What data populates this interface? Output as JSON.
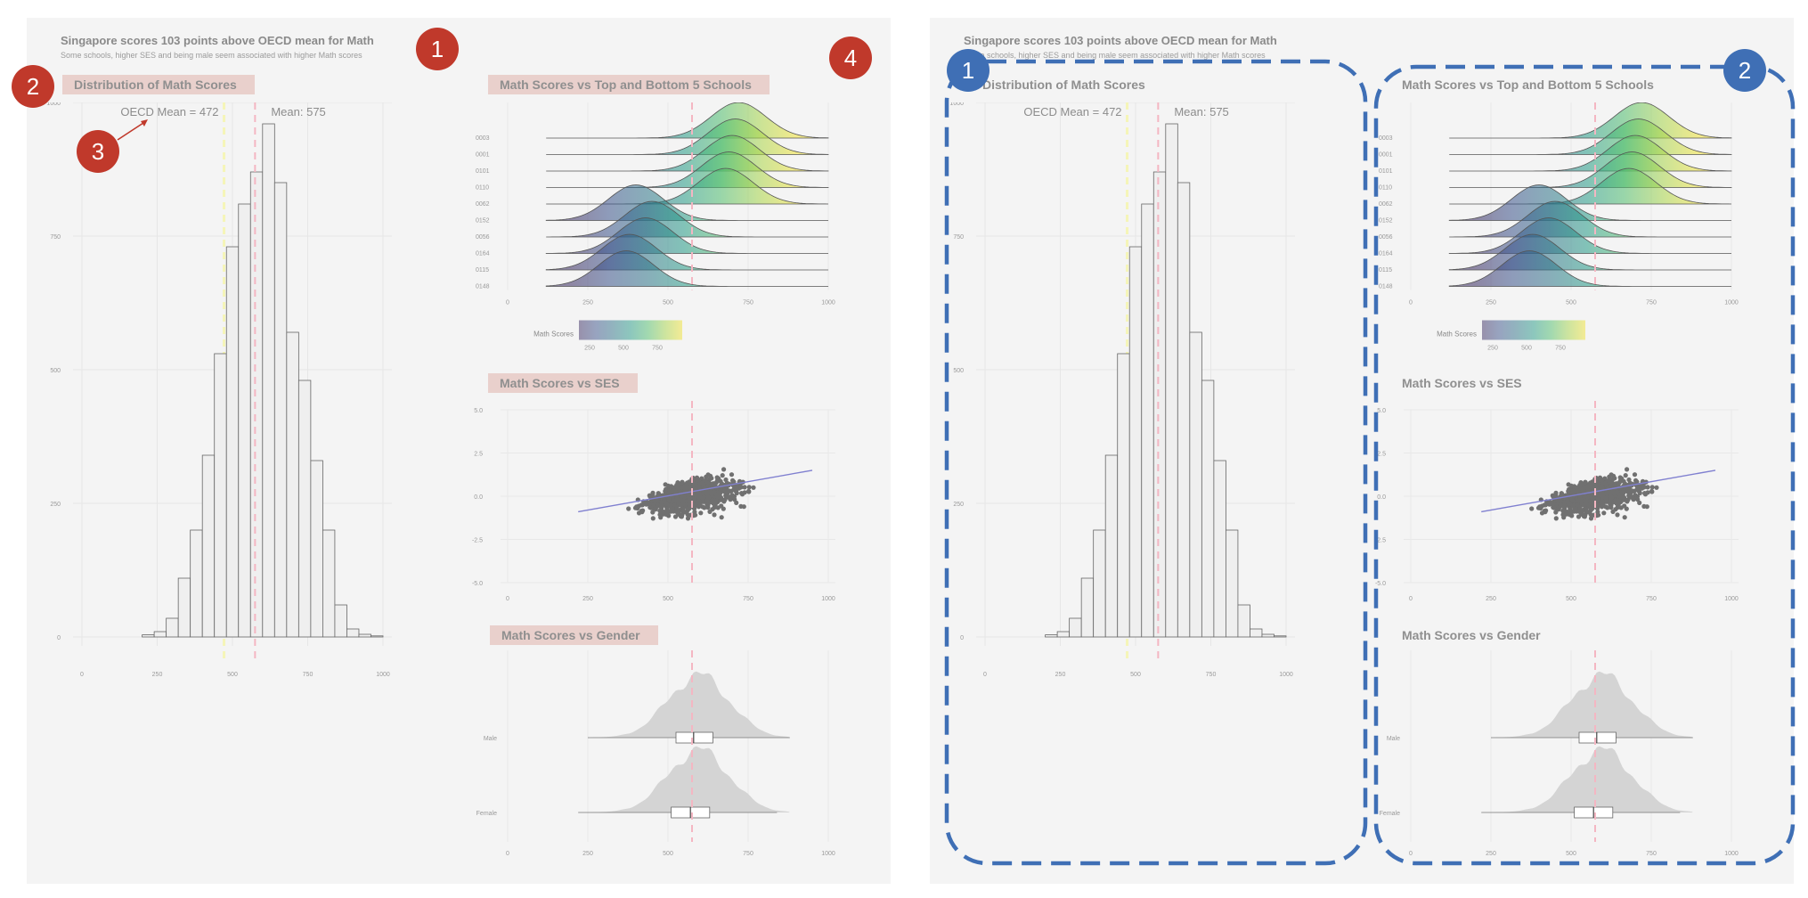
{
  "colors": {
    "panel_bg": "#f4f4f4",
    "highlight_bg": "#e5c6c1",
    "annotation_red": "#c0392b",
    "annotation_blue": "#3f6fb5",
    "mean_line": "#f4b6c2",
    "oecd_line": "#f5f5b8",
    "bar_fill": "#efefef",
    "bar_stroke": "#666666"
  },
  "left_dashboard": {
    "title": "Singapore scores 103 points above OECD mean for Math",
    "subtitle": "Some schools, higher SES and being male seem associated with higher Math scores",
    "sections": {
      "distribution": "Distribution of Math Scores",
      "schools": "Math Scores vs Top and Bottom 5 Schools",
      "ses": "Math Scores vs SES",
      "gender": "Math Scores vs Gender"
    },
    "markers": [
      "1",
      "2",
      "3",
      "4"
    ]
  },
  "right_dashboard": {
    "title": "Singapore scores 103 points above OECD mean for Math",
    "subtitle": "Some schools, higher SES and being male seem associated with higher Math scores",
    "sections": {
      "distribution": "Distribution of Math Scores",
      "schools": "Math Scores vs Top and Bottom 5 Schools",
      "ses": "Math Scores vs SES",
      "gender": "Math Scores vs Gender"
    },
    "markers": [
      "1",
      "2"
    ]
  },
  "chart_data": [
    {
      "type": "bar",
      "title": "Distribution of Math Scores",
      "bin_width": 40,
      "bin_starts": [
        200,
        240,
        280,
        320,
        360,
        400,
        440,
        480,
        520,
        560,
        600,
        640,
        680,
        720,
        760,
        800,
        840,
        880,
        920,
        960
      ],
      "values": [
        4,
        10,
        35,
        110,
        200,
        340,
        530,
        730,
        810,
        870,
        960,
        850,
        570,
        480,
        330,
        200,
        60,
        15,
        5,
        2
      ],
      "xlim": [
        0,
        1000
      ],
      "ylim": [
        0,
        1000
      ],
      "x_ticks": [
        "0",
        "250",
        "500",
        "750",
        "1000"
      ],
      "y_ticks": [
        "0",
        "250",
        "500",
        "750",
        "1000"
      ],
      "oecd_mean": 472,
      "mean": 575,
      "oecd_label": "OECD Mean = 472",
      "mean_label": "Mean:  575"
    },
    {
      "type": "area",
      "title": "Math Scores vs Top and Bottom 5 Schools",
      "schools": [
        "0003",
        "0001",
        "0101",
        "0110",
        "0062",
        "0152",
        "0056",
        "0164",
        "0115",
        "0148"
      ],
      "modes": [
        720,
        710,
        700,
        690,
        680,
        400,
        450,
        430,
        380,
        370
      ],
      "xlim": [
        0,
        1000
      ],
      "x_ticks": [
        "0",
        "250",
        "500",
        "750",
        "1000"
      ],
      "legend_title": "Math Scores",
      "legend_ticks": [
        "250",
        "500",
        "750"
      ],
      "mean": 575
    },
    {
      "type": "scatter",
      "title": "Math Scores vs SES",
      "trend": {
        "x0": 220,
        "y0": -0.9,
        "x1": 950,
        "y1": 1.5
      },
      "xlim": [
        0,
        1000
      ],
      "ylim": [
        -5,
        5
      ],
      "x_ticks": [
        "0",
        "250",
        "500",
        "750",
        "1000"
      ],
      "y_ticks": [
        "5.0",
        "2.5",
        "0.0",
        "-2.5",
        "-5.0"
      ],
      "mean": 575
    },
    {
      "type": "area",
      "title": "Math Scores vs Gender",
      "groups": [
        "Male",
        "Female"
      ],
      "box": [
        {
          "q1": 525,
          "median": 580,
          "q3": 640,
          "min": 250,
          "max": 880
        },
        {
          "q1": 510,
          "median": 570,
          "q3": 630,
          "min": 220,
          "max": 840
        }
      ],
      "xlim": [
        0,
        1000
      ],
      "x_ticks": [
        "0",
        "250",
        "500",
        "750",
        "1000"
      ],
      "mean": 575
    }
  ]
}
